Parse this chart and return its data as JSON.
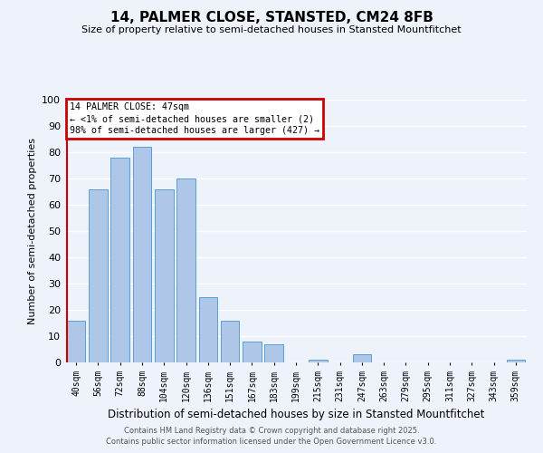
{
  "title": "14, PALMER CLOSE, STANSTED, CM24 8FB",
  "subtitle": "Size of property relative to semi-detached houses in Stansted Mountfitchet",
  "xlabel": "Distribution of semi-detached houses by size in Stansted Mountfitchet",
  "ylabel": "Number of semi-detached properties",
  "annotation_title": "14 PALMER CLOSE: 47sqm",
  "annotation_line2": "← <1% of semi-detached houses are smaller (2)",
  "annotation_line3": "98% of semi-detached houses are larger (427) →",
  "footer1": "Contains HM Land Registry data © Crown copyright and database right 2025.",
  "footer2": "Contains public sector information licensed under the Open Government Licence v3.0.",
  "bar_labels": [
    "40sqm",
    "56sqm",
    "72sqm",
    "88sqm",
    "104sqm",
    "120sqm",
    "136sqm",
    "151sqm",
    "167sqm",
    "183sqm",
    "199sqm",
    "215sqm",
    "231sqm",
    "247sqm",
    "263sqm",
    "279sqm",
    "295sqm",
    "311sqm",
    "327sqm",
    "343sqm",
    "359sqm"
  ],
  "bar_values": [
    16,
    66,
    78,
    82,
    66,
    70,
    25,
    16,
    8,
    7,
    0,
    1,
    0,
    3,
    0,
    0,
    0,
    0,
    0,
    0,
    1
  ],
  "bar_color": "#aec6e8",
  "bar_edge_color": "#5a9fd4",
  "vline_color": "#cc0000",
  "annotation_box_color": "#cc0000",
  "background_color": "#eef2fb",
  "grid_color": "#ffffff",
  "ylim": [
    0,
    100
  ],
  "yticks": [
    0,
    10,
    20,
    30,
    40,
    50,
    60,
    70,
    80,
    90,
    100
  ]
}
